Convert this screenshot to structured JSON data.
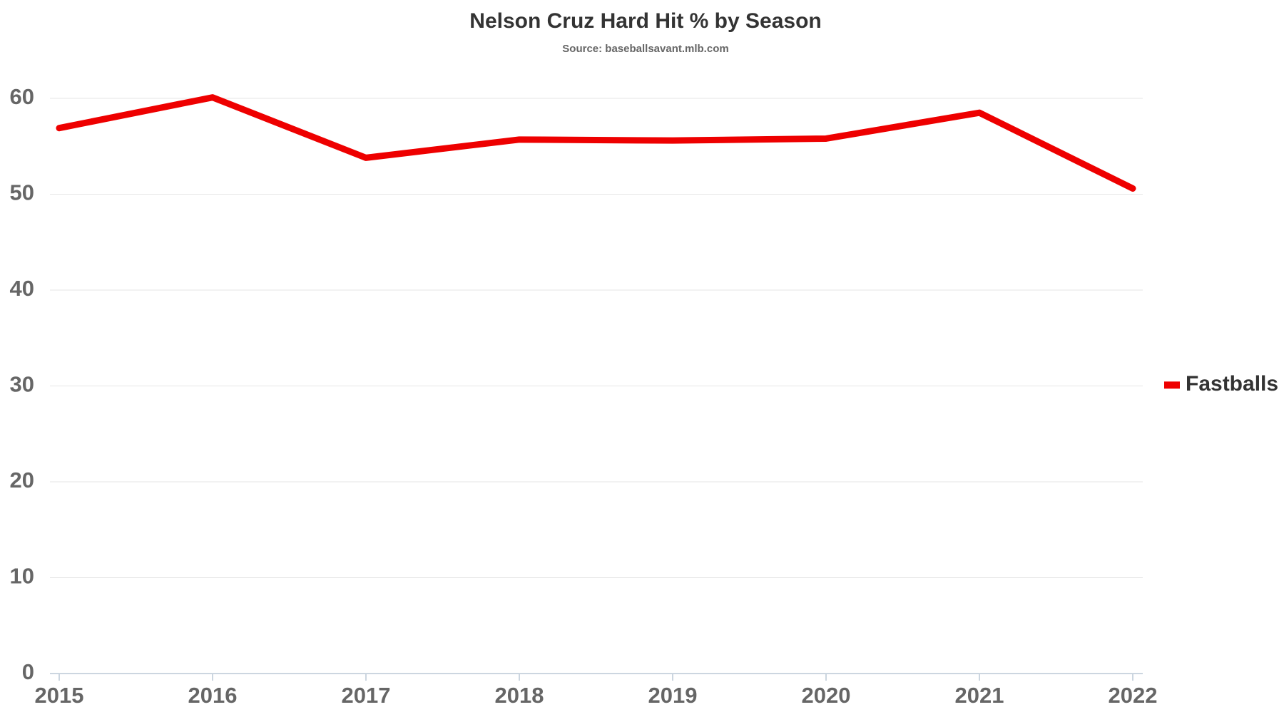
{
  "chart_data": {
    "type": "line",
    "title": "Nelson Cruz Hard Hit % by Season",
    "subtitle": "Source: baseballsavant.mlb.com",
    "x": [
      2015,
      2016,
      2017,
      2018,
      2019,
      2020,
      2021,
      2022
    ],
    "series": [
      {
        "name": "Fastballs",
        "color": "#ee0000",
        "values": [
          56.9,
          60.1,
          53.8,
          55.7,
          55.6,
          55.8,
          58.5,
          50.6
        ]
      }
    ],
    "xlim": [
      2015,
      2022
    ],
    "xticks": [
      2015,
      2016,
      2017,
      2018,
      2019,
      2020,
      2021,
      2022
    ],
    "ylim": [
      0,
      63
    ],
    "yticks": [
      0,
      10,
      20,
      30,
      40,
      50,
      60
    ],
    "grid": true,
    "legend": "right"
  }
}
